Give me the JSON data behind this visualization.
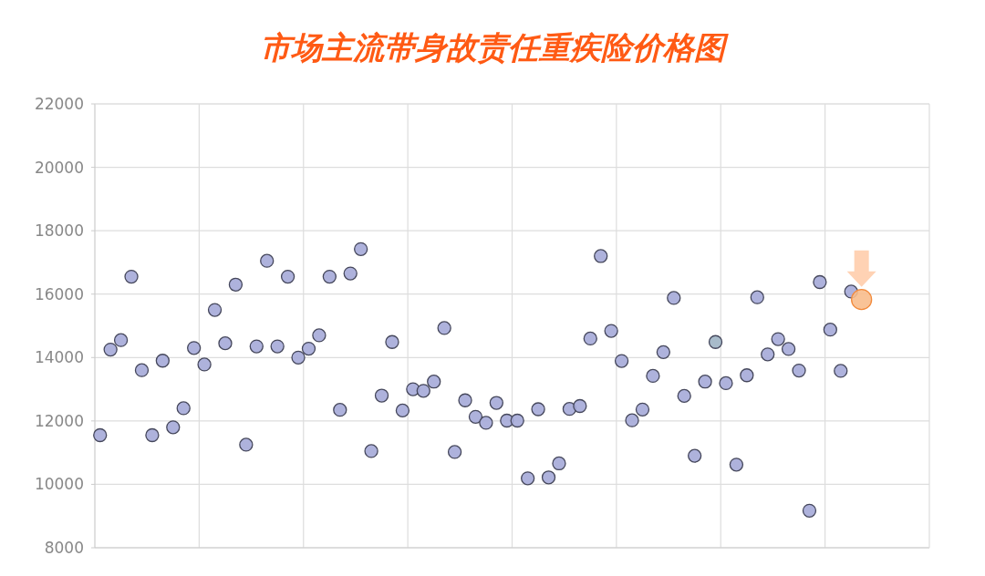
{
  "chart_data": {
    "type": "scatter",
    "title": "市场主流带身故责任重疾险价格图",
    "categories": [
      null,
      null,
      null,
      null,
      null,
      null,
      null,
      null,
      null,
      null,
      null,
      null,
      null,
      null,
      null,
      null,
      null,
      null,
      null,
      null,
      null,
      null,
      null,
      null,
      null,
      null,
      null,
      null,
      null,
      null,
      null,
      null,
      null,
      null,
      null,
      null,
      null,
      null,
      null,
      null,
      null,
      null,
      null,
      null,
      null,
      null,
      null,
      null,
      null,
      null,
      null,
      null,
      null,
      null,
      null,
      null,
      null,
      null,
      null,
      null,
      null,
      null,
      null,
      null,
      null,
      null,
      null,
      null,
      null,
      null,
      null,
      null,
      null,
      null,
      null,
      null,
      null,
      null,
      null,
      null
    ],
    "ylim": [
      8000,
      22000
    ],
    "yticks": [
      8000,
      10000,
      12000,
      14000,
      16000,
      18000,
      20000,
      22000
    ],
    "grid": true,
    "tick_labels": "y",
    "marker": "circle",
    "series": [
      {
        "color": "#a5aad8",
        "values": [
          11550,
          14250,
          14550,
          16550,
          13600,
          11550,
          13900,
          11800,
          12400,
          14300,
          13780,
          15500,
          14450,
          16300,
          11250,
          14350,
          17050,
          14350,
          16550,
          14000,
          14280,
          14700,
          16550,
          12350,
          16650,
          17420,
          11050,
          12800,
          14490,
          12330,
          13000,
          12950,
          13240,
          14930,
          11020,
          12650,
          12130,
          11940,
          12570,
          12010,
          12010,
          10190,
          12370,
          10220,
          10660,
          12380,
          12470,
          14600,
          17200,
          14840,
          13890,
          12020,
          12360,
          13420,
          14170,
          15880,
          12790,
          10900,
          13240,
          14490,
          13190,
          10620,
          13440,
          15900,
          14100,
          14580,
          14270,
          13590,
          9170,
          16380,
          14880,
          13580,
          16080,
          null,
          null,
          null,
          null,
          null,
          null,
          null
        ],
        "colors": [
          "#a5aad8",
          "#a5aad8",
          "#a5aad8",
          "#a5aad8",
          "#a5aad8",
          "#a5aad8",
          "#a5aad8",
          "#a5aad8",
          "#a5aad8",
          "#a5aad8",
          "#a5aad8",
          "#a5aad8",
          "#a5aad8",
          "#a5aad8",
          "#a5aad8",
          "#a5aad8",
          "#a5aad8",
          "#a5aad8",
          "#a5aad8",
          "#a5aad8",
          "#a5aad8",
          "#a5aad8",
          "#a5aad8",
          "#a5aad8",
          "#a5aad8",
          "#a5aad8",
          "#a5aad8",
          "#a5aad8",
          "#a5aad8",
          "#a5aad8",
          "#a5aad8",
          "#a5aad8",
          "#a5aad8",
          "#a5aad8",
          "#a5aad8",
          "#a5aad8",
          "#a5aad8",
          "#a5aad8",
          "#a5aad8",
          "#a5aad8",
          "#a5aad8",
          "#a5aad8",
          "#a5aad8",
          "#a5aad8",
          "#a5aad8",
          "#a5aad8",
          "#a5aad8",
          "#a5aad8",
          "#a5aad8",
          "#a5aad8",
          "#a5aad8",
          "#a5aad8",
          "#a5aad8",
          "#a5aad8",
          "#a5aad8",
          "#a5aad8",
          "#a5aad8",
          "#a5aad8",
          "#a5aad8",
          "#9eb4c4",
          "#a5aad8",
          "#a5aad8",
          "#a5aad8",
          "#a5aad8",
          "#a5aad8",
          "#a5aad8",
          "#a5aad8",
          "#a5aad8",
          "#a5aad8",
          "#a5aad8",
          "#a5aad8",
          "#a5aad8",
          "#a5aad8",
          null,
          null,
          null,
          null,
          null,
          null,
          null
        ]
      },
      {
        "color": "#f8bd8c",
        "values": [
          null,
          null,
          null,
          null,
          null,
          null,
          null,
          null,
          null,
          null,
          null,
          null,
          null,
          null,
          null,
          null,
          null,
          null,
          null,
          null,
          null,
          null,
          null,
          null,
          null,
          null,
          null,
          null,
          null,
          null,
          null,
          null,
          null,
          null,
          null,
          null,
          null,
          null,
          null,
          null,
          null,
          null,
          null,
          null,
          null,
          null,
          null,
          null,
          null,
          null,
          null,
          null,
          null,
          null,
          null,
          null,
          null,
          null,
          null,
          null,
          null,
          null,
          null,
          null,
          null,
          null,
          null,
          null,
          null,
          null,
          null,
          null,
          null,
          15830,
          null,
          null,
          null,
          null,
          null,
          null
        ]
      }
    ]
  }
}
